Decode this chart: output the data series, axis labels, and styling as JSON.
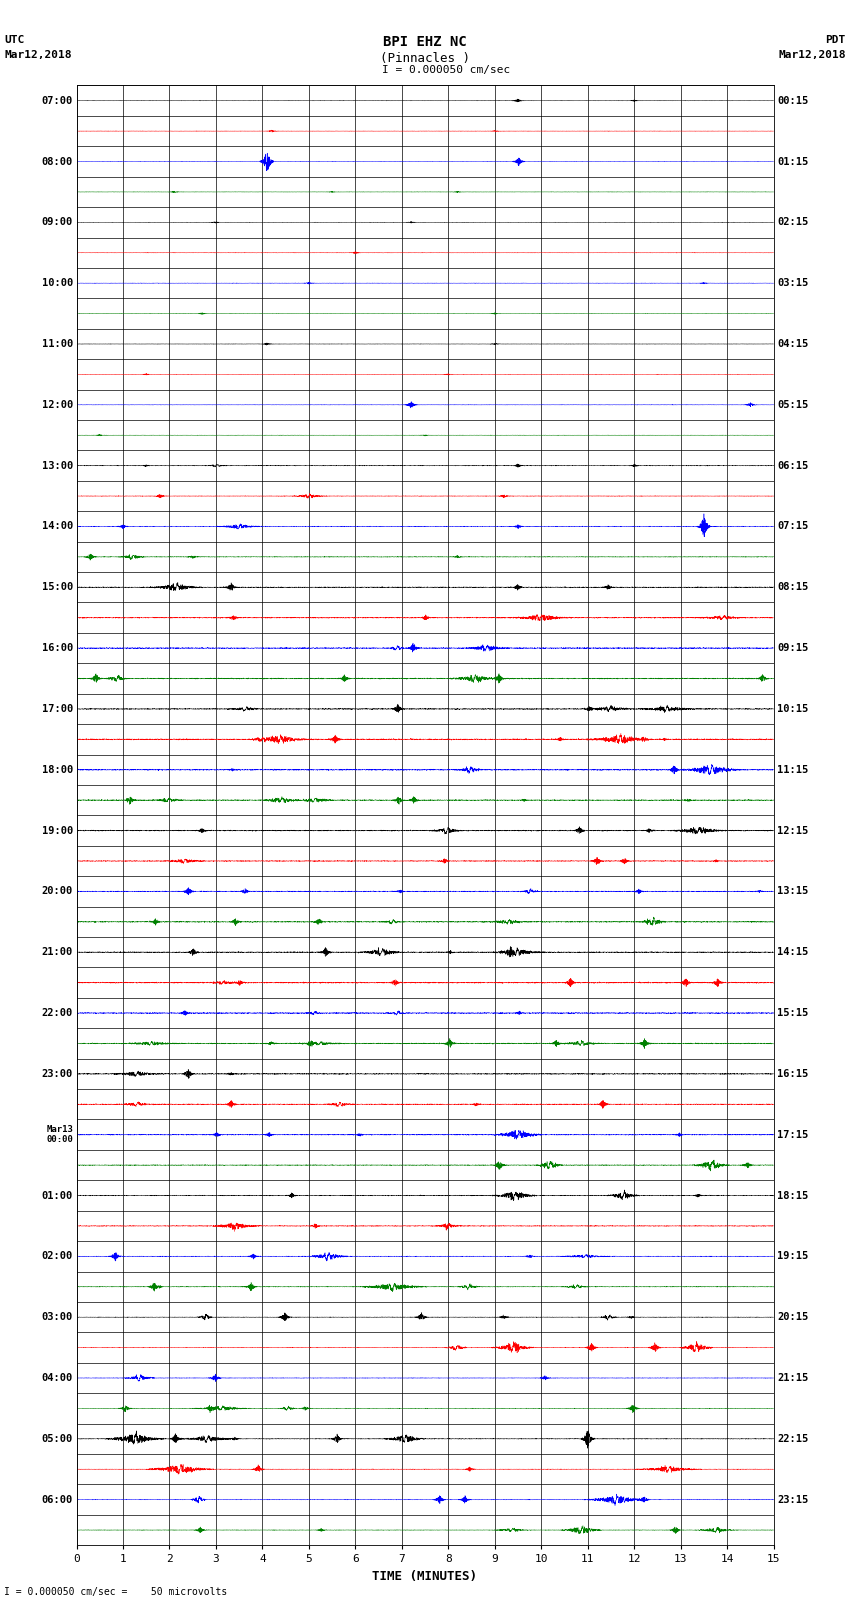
{
  "title_line1": "BPI EHZ NC",
  "title_line2": "(Pinnacles )",
  "title_line3": "I = 0.000050 cm/sec",
  "left_label_top": "UTC",
  "left_label_bot": "Mar12,2018",
  "right_label_top": "PDT",
  "right_label_bot": "Mar12,2018",
  "xlabel": "TIME (MINUTES)",
  "footer": "I = 0.000050 cm/sec =    50 microvolts",
  "xlim": [
    0,
    15
  ],
  "xticks": [
    0,
    1,
    2,
    3,
    4,
    5,
    6,
    7,
    8,
    9,
    10,
    11,
    12,
    13,
    14,
    15
  ],
  "background_color": "#ffffff",
  "trace_colors": [
    "#000000",
    "#ff0000",
    "#0000ff",
    "#008000"
  ],
  "num_rows": 48,
  "left_times": [
    "07:00",
    "",
    "08:00",
    "",
    "09:00",
    "",
    "10:00",
    "",
    "11:00",
    "",
    "12:00",
    "",
    "13:00",
    "",
    "14:00",
    "",
    "15:00",
    "",
    "16:00",
    "",
    "17:00",
    "",
    "18:00",
    "",
    "19:00",
    "",
    "20:00",
    "",
    "21:00",
    "",
    "22:00",
    "",
    "23:00",
    "",
    "Mar13\n00:00",
    "",
    "01:00",
    "",
    "02:00",
    "",
    "03:00",
    "",
    "04:00",
    "",
    "05:00",
    "",
    "06:00",
    ""
  ],
  "right_times": [
    "00:15",
    "",
    "01:15",
    "",
    "02:15",
    "",
    "03:15",
    "",
    "04:15",
    "",
    "05:15",
    "",
    "06:15",
    "",
    "07:15",
    "",
    "08:15",
    "",
    "09:15",
    "",
    "10:15",
    "",
    "11:15",
    "",
    "12:15",
    "",
    "13:15",
    "",
    "14:15",
    "",
    "15:15",
    "",
    "16:15",
    "",
    "17:15",
    "",
    "18:15",
    "",
    "19:15",
    "",
    "20:15",
    "",
    "21:15",
    "",
    "22:15",
    "",
    "23:15",
    ""
  ],
  "fig_width": 8.5,
  "fig_height": 16.13,
  "dpi": 100
}
